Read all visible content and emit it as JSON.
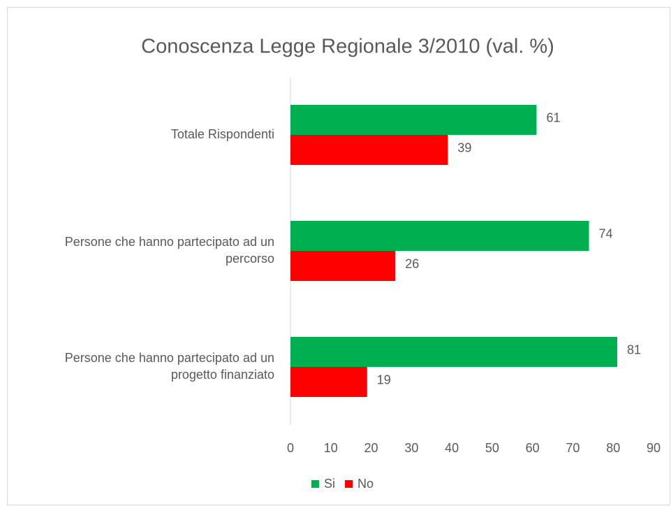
{
  "chart_data": {
    "type": "bar",
    "orientation": "horizontal",
    "title": "Conoscenza  Legge Regionale 3/2010 (val. %)",
    "categories": [
      "Totale Rispondenti",
      "Persone che hanno partecipato ad un percorso",
      "Persone che hanno partecipato ad un progetto finanziato"
    ],
    "series": [
      {
        "name": "Si",
        "color": "#00b050",
        "values": [
          61,
          74,
          81
        ]
      },
      {
        "name": "No",
        "color": "#ff0000",
        "values": [
          39,
          26,
          19
        ]
      }
    ],
    "xlim": [
      0,
      90
    ],
    "xticks": [
      0,
      10,
      20,
      30,
      40,
      50,
      60,
      70,
      80,
      90
    ],
    "legend": "bottom"
  }
}
